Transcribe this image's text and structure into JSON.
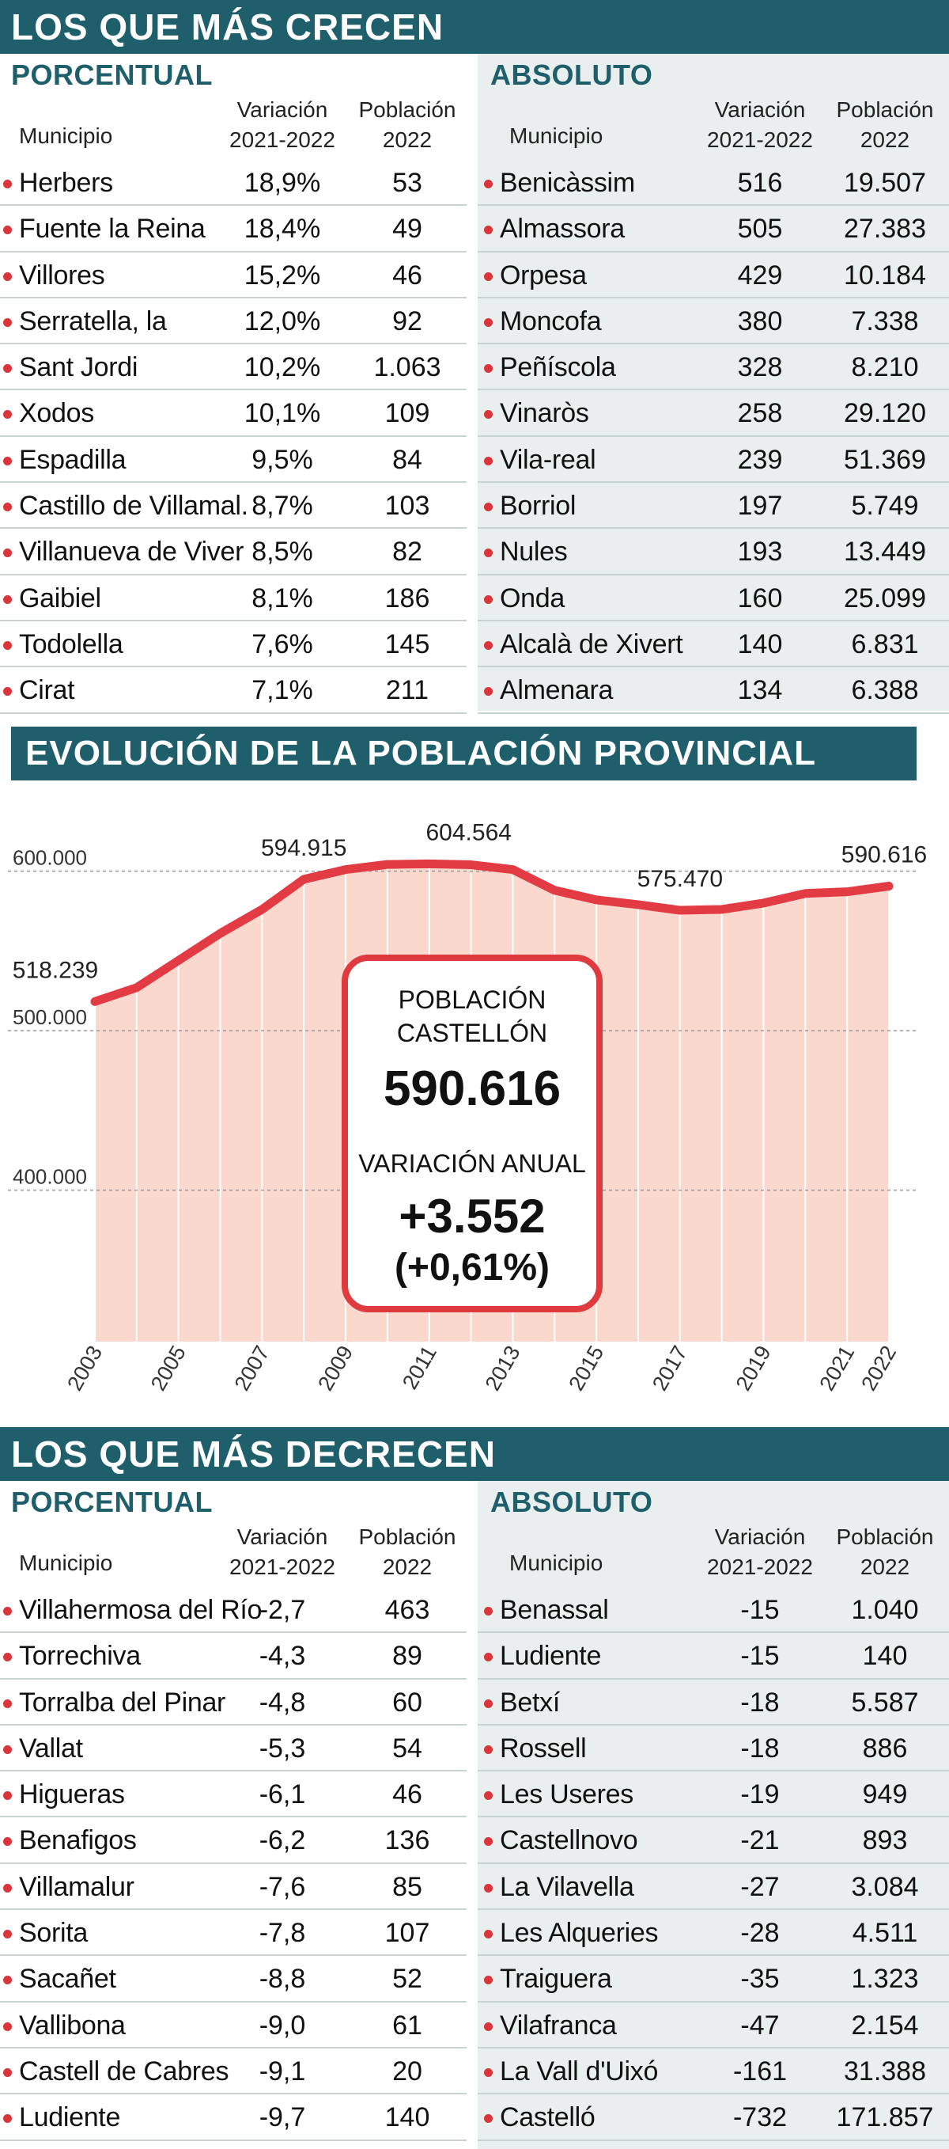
{
  "top": {
    "title": "LOS QUE MÁS CRECEN",
    "left": {
      "title": "PORCENTUAL",
      "headers": {
        "municipio": "Municipio",
        "variacion_1": "Variación",
        "variacion_2": "2021-2022",
        "poblacion_1": "Población",
        "poblacion_2": "2022"
      },
      "rows": [
        {
          "municipio": "Herbers",
          "variacion": "18,9%",
          "poblacion": "53"
        },
        {
          "municipio": "Fuente la Reina",
          "variacion": "18,4%",
          "poblacion": "49"
        },
        {
          "municipio": "Villores",
          "variacion": "15,2%",
          "poblacion": "46"
        },
        {
          "municipio": "Serratella, la",
          "variacion": "12,0%",
          "poblacion": "92"
        },
        {
          "municipio": "Sant Jordi",
          "variacion": "10,2%",
          "poblacion": "1.063"
        },
        {
          "municipio": "Xodos",
          "variacion": "10,1%",
          "poblacion": "109"
        },
        {
          "municipio": "Espadilla",
          "variacion": "9,5%",
          "poblacion": "84"
        },
        {
          "municipio": "Castillo de Villamal.",
          "variacion": "8,7%",
          "poblacion": "103"
        },
        {
          "municipio": "Villanueva de Viver",
          "variacion": "8,5%",
          "poblacion": "82"
        },
        {
          "municipio": "Gaibiel",
          "variacion": "8,1%",
          "poblacion": "186"
        },
        {
          "municipio": "Todolella",
          "variacion": "7,6%",
          "poblacion": "145"
        },
        {
          "municipio": "Cirat",
          "variacion": "7,1%",
          "poblacion": "211"
        }
      ]
    },
    "right": {
      "title": "ABSOLUTO",
      "headers": {
        "municipio": "Municipio",
        "variacion_1": "Variación",
        "variacion_2": "2021-2022",
        "poblacion_1": "Población",
        "poblacion_2": "2022"
      },
      "rows": [
        {
          "municipio": "Benicàssim",
          "variacion": "516",
          "poblacion": "19.507"
        },
        {
          "municipio": "Almassora",
          "variacion": "505",
          "poblacion": "27.383"
        },
        {
          "municipio": "Orpesa",
          "variacion": "429",
          "poblacion": "10.184"
        },
        {
          "municipio": "Moncofa",
          "variacion": "380",
          "poblacion": "7.338"
        },
        {
          "municipio": "Peñíscola",
          "variacion": "328",
          "poblacion": "8.210"
        },
        {
          "municipio": "Vinaròs",
          "variacion": "258",
          "poblacion": "29.120"
        },
        {
          "municipio": "Vila-real",
          "variacion": "239",
          "poblacion": "51.369"
        },
        {
          "municipio": "Borriol",
          "variacion": "197",
          "poblacion": "5.749"
        },
        {
          "municipio": "Nules",
          "variacion": "193",
          "poblacion": "13.449"
        },
        {
          "municipio": "Onda",
          "variacion": "160",
          "poblacion": "25.099"
        },
        {
          "municipio": "Alcalà de Xivert",
          "variacion": "140",
          "poblacion": "6.831"
        },
        {
          "municipio": "Almenara",
          "variacion": "134",
          "poblacion": "6.388"
        }
      ]
    }
  },
  "middle": {
    "title": "EVOLUCIÓN DE LA POBLACIÓN PROVINCIAL",
    "infobox": {
      "label_1": "POBLACIÓN",
      "label_2": "CASTELLÓN",
      "population": "590.616",
      "label_3": "VARIACIÓN ANUAL",
      "variation": "+3.552",
      "variation_pct": "(+0,61%)"
    }
  },
  "chart_data": {
    "type": "area",
    "title": "EVOLUCIÓN DE LA POBLACIÓN PROVINCIAL",
    "x": [
      2003,
      2004,
      2005,
      2006,
      2007,
      2008,
      2009,
      2010,
      2011,
      2012,
      2013,
      2014,
      2015,
      2016,
      2017,
      2018,
      2019,
      2020,
      2021,
      2022
    ],
    "values": [
      518239,
      527000,
      544000,
      561000,
      576000,
      594915,
      601000,
      604200,
      604564,
      604000,
      601000,
      588000,
      582000,
      579000,
      575470,
      576000,
      580000,
      586000,
      587064,
      590616
    ],
    "x_tick_labels": [
      "2003",
      "2005",
      "2007",
      "2009",
      "2011",
      "2013",
      "2015",
      "2017",
      "2019",
      "2021",
      "2022"
    ],
    "y_tick_labels": [
      "600.000",
      "500.000",
      "400.000"
    ],
    "y_ticks": [
      600000,
      500000,
      400000
    ],
    "ylim": [
      305000,
      640000
    ],
    "point_labels": [
      {
        "year": 2003,
        "label": "518.239"
      },
      {
        "year": 2008,
        "label": "594.915"
      },
      {
        "year": 2011,
        "label": "604.564"
      },
      {
        "year": 2017,
        "label": "575.470"
      },
      {
        "year": 2022,
        "label": "590.616"
      }
    ],
    "line_color": "#e23b43",
    "fill_color": "#fbd8cd",
    "grid": true,
    "xlabel": "",
    "ylabel": ""
  },
  "bottom": {
    "title": "LOS QUE MÁS DECRECEN",
    "left": {
      "title": "PORCENTUAL",
      "headers": {
        "municipio": "Municipio",
        "variacion_1": "Variación",
        "variacion_2": "2021-2022",
        "poblacion_1": "Población",
        "poblacion_2": "2022"
      },
      "rows": [
        {
          "municipio": "Villahermosa del Río",
          "variacion": "-2,7",
          "poblacion": "463"
        },
        {
          "municipio": "Torrechiva",
          "variacion": "-4,3",
          "poblacion": "89"
        },
        {
          "municipio": "Torralba del Pinar",
          "variacion": "-4,8",
          "poblacion": "60"
        },
        {
          "municipio": "Vallat",
          "variacion": "-5,3",
          "poblacion": "54"
        },
        {
          "municipio": "Higueras",
          "variacion": "-6,1",
          "poblacion": "46"
        },
        {
          "municipio": "Benafigos",
          "variacion": "-6,2",
          "poblacion": "136"
        },
        {
          "municipio": "Villamalur",
          "variacion": "-7,6",
          "poblacion": "85"
        },
        {
          "municipio": "Sorita",
          "variacion": "-7,8",
          "poblacion": "107"
        },
        {
          "municipio": "Sacañet",
          "variacion": "-8,8",
          "poblacion": "52"
        },
        {
          "municipio": "Vallibona",
          "variacion": "-9,0",
          "poblacion": "61"
        },
        {
          "municipio": "Castell de Cabres",
          "variacion": "-9,1",
          "poblacion": "20"
        },
        {
          "municipio": "Ludiente",
          "variacion": "-9,7",
          "poblacion": "140"
        }
      ]
    },
    "right": {
      "title": "ABSOLUTO",
      "headers": {
        "municipio": "Municipio",
        "variacion_1": "Variación",
        "variacion_2": "2021-2022",
        "poblacion_1": "Población",
        "poblacion_2": "2022"
      },
      "rows": [
        {
          "municipio": "Benassal",
          "variacion": "-15",
          "poblacion": "1.040"
        },
        {
          "municipio": "Ludiente",
          "variacion": "-15",
          "poblacion": "140"
        },
        {
          "municipio": "Betxí",
          "variacion": "-18",
          "poblacion": "5.587"
        },
        {
          "municipio": "Rossell",
          "variacion": "-18",
          "poblacion": "886"
        },
        {
          "municipio": "Les Useres",
          "variacion": "-19",
          "poblacion": "949"
        },
        {
          "municipio": "Castellnovo",
          "variacion": "-21",
          "poblacion": "893"
        },
        {
          "municipio": "La Vilavella",
          "variacion": "-27",
          "poblacion": "3.084"
        },
        {
          "municipio": "Les Alqueries",
          "variacion": "-28",
          "poblacion": "4.511"
        },
        {
          "municipio": "Traiguera",
          "variacion": "-35",
          "poblacion": "1.323"
        },
        {
          "municipio": "Vilafranca",
          "variacion": "-47",
          "poblacion": "2.154"
        },
        {
          "municipio": "La Vall d'Uixó",
          "variacion": "-161",
          "poblacion": "31.388"
        },
        {
          "municipio": "Castelló",
          "variacion": "-732",
          "poblacion": "171.857"
        }
      ]
    }
  }
}
